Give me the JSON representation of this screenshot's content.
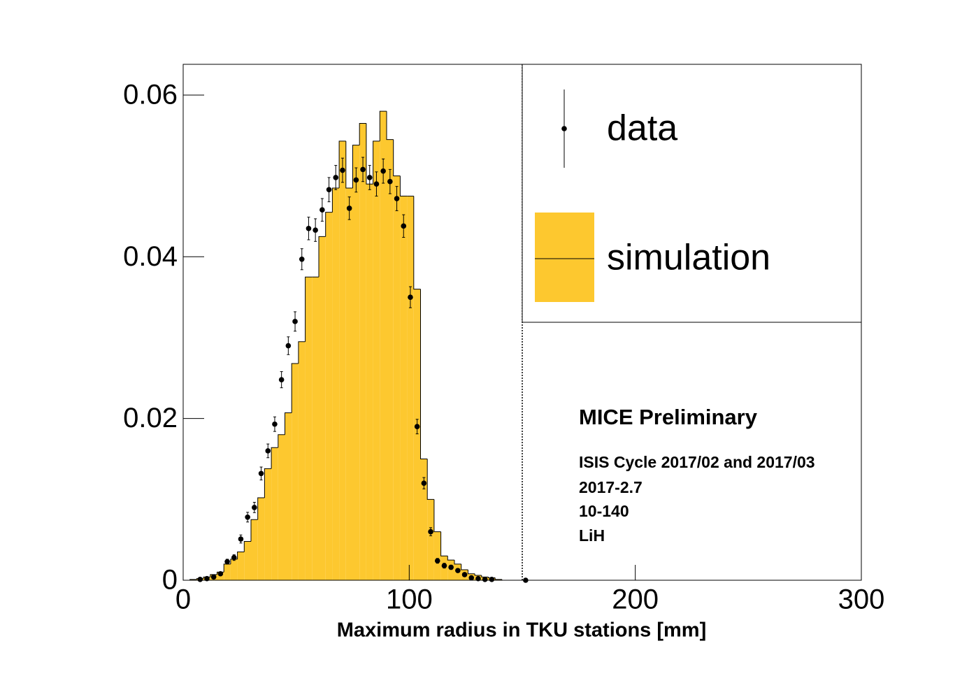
{
  "chart_data": {
    "type": "histogram",
    "x_label": "Maximum radius in TKU stations [mm]",
    "xlim": [
      0,
      300
    ],
    "xticks": [
      0,
      100,
      200,
      300
    ],
    "ylim": [
      0,
      0.0638
    ],
    "yticks": [
      0,
      0.02,
      0.04,
      0.06
    ],
    "vline": 150,
    "legend_position": "upper-right",
    "annotations": [
      "MICE Preliminary",
      "ISIS Cycle 2017/02 and 2017/03",
      "2017-2.7",
      "10-140",
      "LiH"
    ],
    "series": [
      {
        "name": "data",
        "type": "errorbar",
        "color": "#000000",
        "x": [
          7.5,
          10.5,
          13.5,
          16.5,
          19.5,
          22.5,
          25.5,
          28.5,
          31.5,
          34.5,
          37.5,
          40.5,
          43.5,
          46.5,
          49.5,
          52.5,
          55.5,
          58.5,
          61.5,
          64.5,
          67.5,
          70.5,
          73.5,
          76.5,
          79.5,
          82.5,
          85.5,
          88.5,
          91.5,
          94.5,
          97.5,
          100.5,
          103.5,
          106.5,
          109.5,
          112.5,
          115.5,
          118.5,
          121.5,
          124.5,
          127.5,
          130.5,
          133.5,
          136.5,
          151.5
        ],
        "values": [
          0.0001,
          0.0002,
          0.0004,
          0.0008,
          0.0023,
          0.0028,
          0.0051,
          0.0078,
          0.009,
          0.0132,
          0.016,
          0.0193,
          0.0248,
          0.029,
          0.032,
          0.0397,
          0.0435,
          0.0433,
          0.0458,
          0.0483,
          0.0498,
          0.0507,
          0.046,
          0.0495,
          0.0508,
          0.0498,
          0.049,
          0.0506,
          0.0493,
          0.0472,
          0.0438,
          0.035,
          0.019,
          0.012,
          0.006,
          0.0024,
          0.0018,
          0.0016,
          0.0012,
          0.0007,
          0.0003,
          0.0002,
          0.0001,
          0.0001,
          0
        ],
        "errors": [
          7e-05,
          0.0001,
          0.00013,
          0.0002,
          0.0003,
          0.00035,
          0.0005,
          0.0006,
          0.00064,
          0.0008,
          0.00085,
          0.0009,
          0.001,
          0.0011,
          0.0012,
          0.0013,
          0.0014,
          0.0014,
          0.0014,
          0.0015,
          0.0015,
          0.0015,
          0.0014,
          0.0015,
          0.0015,
          0.0015,
          0.0015,
          0.0015,
          0.0015,
          0.0015,
          0.0014,
          0.0013,
          0.0009,
          0.0007,
          0.0005,
          0.0003,
          0.0003,
          0.00027,
          0.00023,
          0.00018,
          0.00012,
          0.0001,
          7e-05,
          7e-05,
          0
        ]
      },
      {
        "name": "simulation",
        "type": "histogram",
        "color": "#fdc82f",
        "edge_color": "#000000",
        "bins": [
          0,
          3,
          6,
          9,
          12,
          15,
          18,
          21,
          24,
          27,
          30,
          33,
          36,
          39,
          42,
          45,
          48,
          51,
          54,
          57,
          60,
          63,
          66,
          69,
          72,
          75,
          78,
          81,
          84,
          87,
          90,
          93,
          96,
          99,
          102,
          105,
          108,
          111,
          114,
          117,
          120,
          123,
          126,
          129,
          132,
          135,
          138,
          141
        ],
        "values": [
          0,
          0.0001,
          0.0002,
          0.0004,
          0.0007,
          0.001,
          0.002,
          0.0026,
          0.0035,
          0.0048,
          0.0075,
          0.0102,
          0.0138,
          0.0164,
          0.018,
          0.0207,
          0.0268,
          0.0295,
          0.0375,
          0.0375,
          0.0425,
          0.0455,
          0.0485,
          0.0543,
          0.0485,
          0.0538,
          0.0565,
          0.049,
          0.0543,
          0.058,
          0.0545,
          0.05,
          0.0475,
          0.0475,
          0.036,
          0.015,
          0.01,
          0.006,
          0.003,
          0.0025,
          0.002,
          0.0013,
          0.0008,
          0.0006,
          0.0004,
          0.0003,
          0.0001
        ]
      }
    ]
  }
}
